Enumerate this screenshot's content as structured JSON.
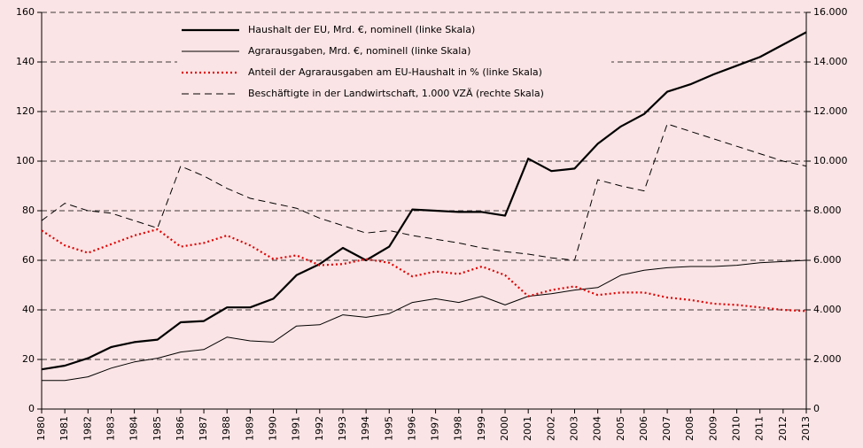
{
  "chart_data": {
    "type": "line",
    "categories": [
      "1980",
      "1981",
      "1982",
      "1983",
      "1984",
      "1985",
      "1986",
      "1987",
      "1988",
      "1989",
      "1990",
      "1991",
      "1992",
      "1993",
      "1994",
      "1995",
      "1996",
      "1997",
      "1998",
      "1999",
      "2000",
      "2001",
      "2002",
      "2003",
      "2004",
      "2005",
      "2006",
      "2007",
      "2008",
      "2009",
      "2010",
      "2011",
      "2012",
      "2013"
    ],
    "series": [
      {
        "name": "Haushalt der EU, Mrd. €, nominell (linke Skala)",
        "color": "#000000",
        "style": "solid-thick",
        "values": [
          16,
          17.5,
          20.5,
          25,
          27,
          28,
          35,
          35.5,
          41,
          41,
          44.5,
          54,
          58.5,
          65,
          60,
          65.5,
          80.5,
          80,
          79.5,
          79.5,
          78,
          101,
          96,
          97,
          107,
          114,
          119,
          128,
          131,
          135,
          138.5,
          142,
          147,
          152
        ]
      },
      {
        "name": "Agrarausgaben, Mrd. €, nominell (linke Skala)",
        "color": "#000000",
        "style": "solid-thin",
        "values": [
          11.5,
          11.5,
          13,
          16.5,
          19,
          20.5,
          23,
          24,
          29,
          27.5,
          27,
          33.5,
          34,
          38,
          37,
          38.5,
          43,
          44.5,
          43,
          45.5,
          42,
          45.5,
          46.5,
          48,
          49,
          54,
          56,
          57,
          57.5,
          57.5,
          58,
          59,
          59.5,
          60
        ]
      },
      {
        "name": "Anteil der Agrarausgaben am EU-Haushalt in % (linke Skala)",
        "color": "#e00000",
        "style": "dotted",
        "values": [
          72,
          66,
          63,
          66.5,
          70,
          72.5,
          65.5,
          67,
          70,
          66,
          60.5,
          62,
          58,
          58.5,
          60.5,
          59,
          53.5,
          55.5,
          54.5,
          57.5,
          54,
          45.5,
          48,
          49.5,
          46,
          47,
          47,
          45,
          44,
          42.5,
          42,
          41,
          40,
          39.5
        ]
      },
      {
        "name": "Beschäftigte in der Landwirtschaft, 1.000 VZÄ (rechte Skala)",
        "color": "#000000",
        "style": "dashed",
        "axis": "y2",
        "values": [
          7600,
          8300,
          8000,
          7900,
          7600,
          7300,
          9800,
          9400,
          8900,
          8500,
          8300,
          8100,
          7700,
          7400,
          7100,
          7200,
          7000,
          6850,
          6700,
          6500,
          6350,
          6250,
          6100,
          6000,
          9250,
          9000,
          8800,
          11500,
          11200,
          10900,
          10600,
          10300,
          10000,
          9800
        ]
      }
    ],
    "ylim": [
      0,
      160
    ],
    "yticks": [
      0,
      20,
      40,
      60,
      80,
      100,
      120,
      140,
      160
    ],
    "y2lim": [
      0,
      16000
    ],
    "y2ticks": [
      0,
      {
        "value": 2000,
        "label": "2.000"
      },
      {
        "value": 4000,
        "label": "4.000"
      },
      {
        "value": 6000,
        "label": "6.000"
      },
      {
        "value": 8000,
        "label": "8.000"
      },
      {
        "value": 10000,
        "label": "10.000"
      },
      {
        "value": 12000,
        "label": "12.000"
      },
      {
        "value": 14000,
        "label": "14.000"
      },
      {
        "value": 16000,
        "label": "16.000"
      }
    ],
    "grid": true
  }
}
